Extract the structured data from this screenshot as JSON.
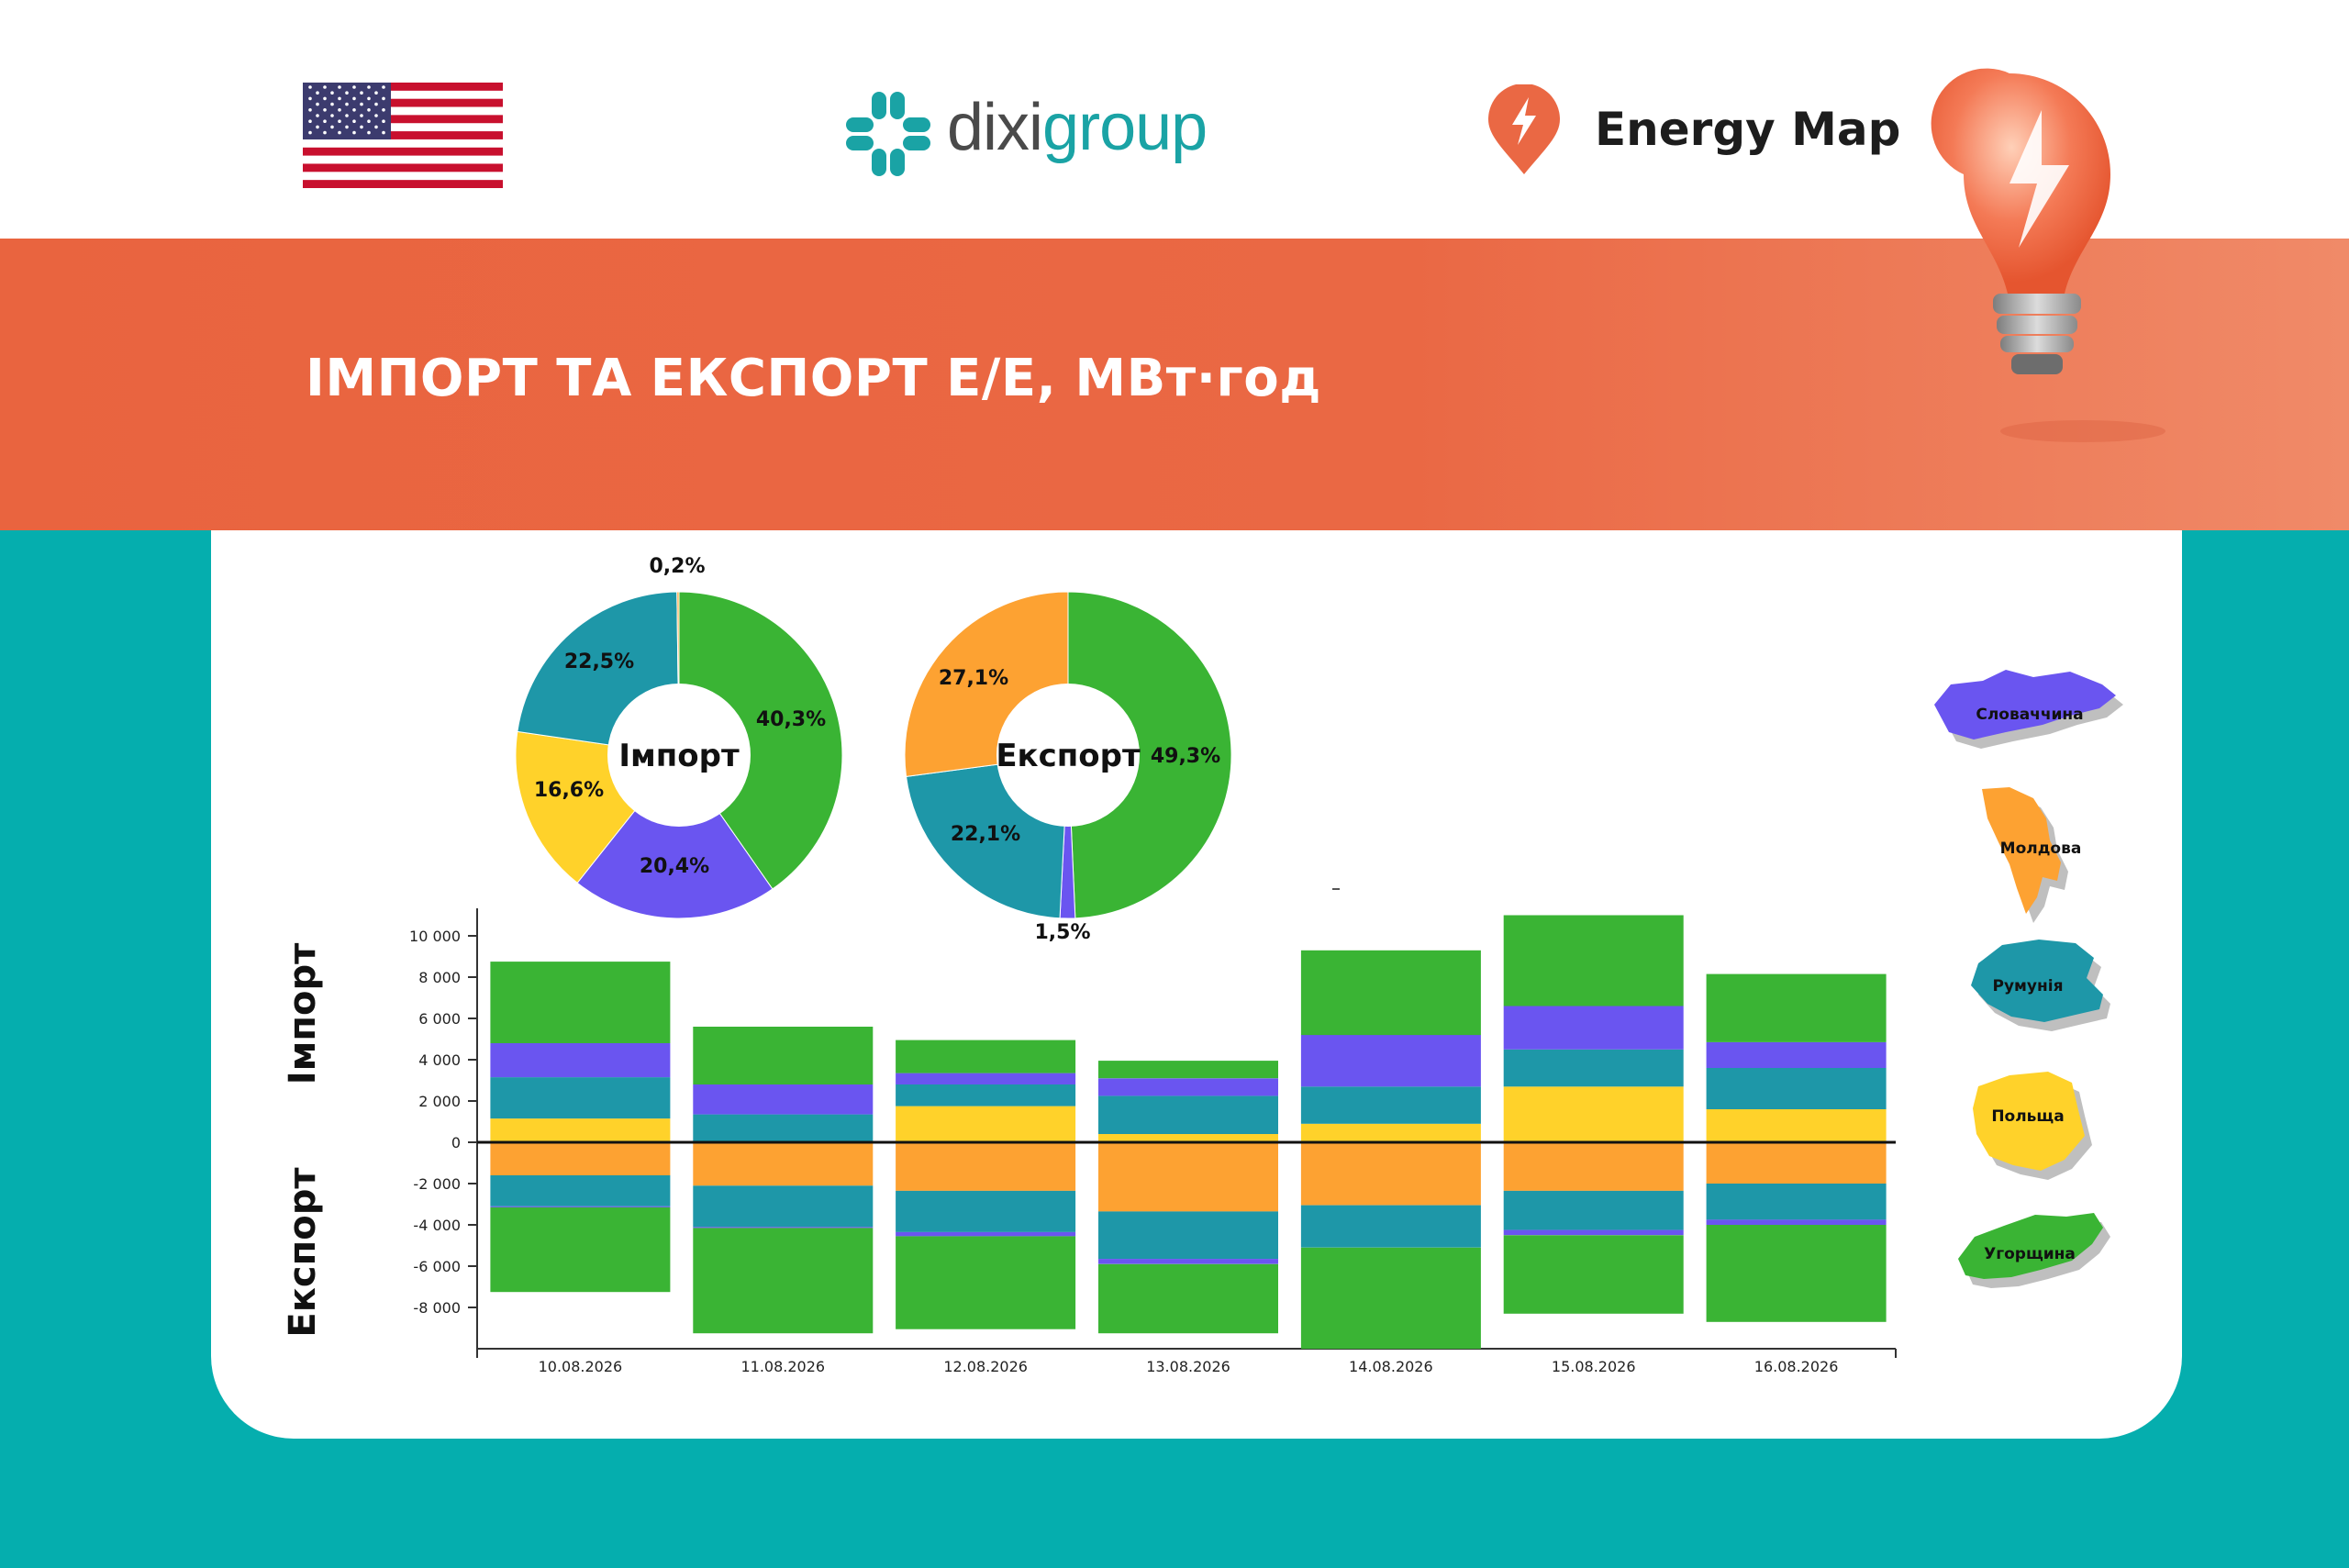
{
  "header": {
    "brand_prefix": "dixi",
    "brand_suffix": "group",
    "energy_map": "Energy Map",
    "flag_icon": "us-flag-icon",
    "logo_icon": "dixigroup-cross-icon",
    "pin_icon": "lightning-pin-icon",
    "bulb_icon": "light-bulb-icon"
  },
  "banner": {
    "title": "ІМПОРТ ТА ЕКСПОРТ Е/Е, МВт·год"
  },
  "colors": {
    "slovakia": "#6a55f0",
    "moldova": "#fda232",
    "romania": "#1e97a8",
    "poland": "#ffd22a",
    "hungary": "#3ab434",
    "banner": "#e9643f",
    "teal_bg": "#05aeae"
  },
  "legend": [
    {
      "name": "Словаччина",
      "key": "slovakia"
    },
    {
      "name": "Молдова",
      "key": "moldova"
    },
    {
      "name": "Румунія",
      "key": "romania"
    },
    {
      "name": "Польща",
      "key": "poland"
    },
    {
      "name": "Угорщина",
      "key": "hungary"
    }
  ],
  "chart_data": [
    {
      "type": "pie",
      "donut": true,
      "center_label": "Імпорт",
      "slices": [
        {
          "country": "hungary",
          "value": 40.3,
          "label": "40,3%"
        },
        {
          "country": "slovakia",
          "value": 20.4,
          "label": "20,4%"
        },
        {
          "country": "poland",
          "value": 16.6,
          "label": "16,6%"
        },
        {
          "country": "romania",
          "value": 22.5,
          "label": "22,5%"
        },
        {
          "country": "moldova",
          "value": 0.2,
          "label": "0,2%"
        }
      ]
    },
    {
      "type": "pie",
      "donut": true,
      "center_label": "Експорт",
      "slices": [
        {
          "country": "hungary",
          "value": 49.3,
          "label": "49,3%"
        },
        {
          "country": "slovakia",
          "value": 1.5,
          "label": "1,5%"
        },
        {
          "country": "romania",
          "value": 22.1,
          "label": "22,1%"
        },
        {
          "country": "moldova",
          "value": 27.1,
          "label": "27,1%"
        }
      ]
    },
    {
      "type": "bar",
      "stacked": true,
      "y_label_top": "Імпорт",
      "y_label_bottom": "Експорт",
      "ylim": [
        -10000,
        11000
      ],
      "yticks": [
        10000,
        8000,
        6000,
        4000,
        2000,
        0,
        -2000,
        -4000,
        -6000,
        -8000
      ],
      "ytick_labels": [
        "10 000",
        "8 000",
        "6 000",
        "4 000",
        "2 000",
        "0",
        "-2 000",
        "-4 000",
        "-6 000",
        "-8 000"
      ],
      "categories": [
        "10.08.2026",
        "11.08.2026",
        "12.08.2026",
        "13.08.2026",
        "14.08.2026",
        "15.08.2026",
        "16.08.2026"
      ],
      "import_series": [
        {
          "country": "moldova",
          "values": [
            0,
            0,
            0,
            0,
            0,
            0,
            0
          ]
        },
        {
          "country": "poland",
          "values": [
            1150,
            0,
            1750,
            400,
            900,
            2700,
            1600
          ]
        },
        {
          "country": "romania",
          "values": [
            2000,
            1350,
            1050,
            1850,
            1800,
            1800,
            2000
          ]
        },
        {
          "country": "slovakia",
          "values": [
            1650,
            1450,
            550,
            850,
            2500,
            2100,
            1250
          ]
        },
        {
          "country": "hungary",
          "values": [
            3950,
            2800,
            1600,
            850,
            4100,
            4400,
            3300
          ]
        }
      ],
      "export_series": [
        {
          "country": "moldova",
          "values": [
            -1600,
            -2100,
            -2350,
            -3350,
            -3050,
            -2350,
            -2000
          ]
        },
        {
          "country": "romania",
          "values": [
            -1500,
            -2000,
            -2000,
            -2300,
            -2050,
            -1900,
            -1750
          ]
        },
        {
          "country": "slovakia",
          "values": [
            -50,
            -50,
            -200,
            -250,
            0,
            -250,
            -250
          ]
        },
        {
          "country": "hungary",
          "values": [
            -4100,
            -5100,
            -4500,
            -3350,
            -4900,
            -3800,
            -4700
          ]
        }
      ]
    }
  ]
}
